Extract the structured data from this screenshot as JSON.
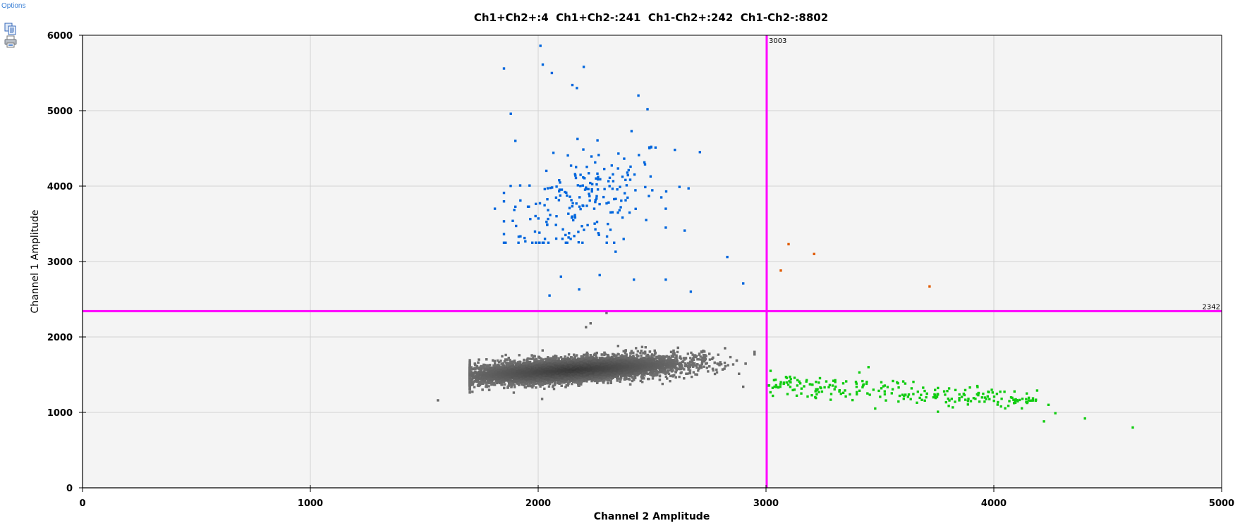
{
  "toolbar": {
    "options_label": "Options",
    "icons": [
      "copy-icon",
      "print-icon"
    ]
  },
  "chart_data": {
    "type": "scatter",
    "title": "Ch1+Ch2+:4  Ch1+Ch2-:241  Ch1-Ch2+:242  Ch1-Ch2-:8802",
    "xlabel": "Channel 2 Amplitude",
    "ylabel": "Channel 1 Amplitude",
    "xlim": [
      0,
      5000
    ],
    "ylim": [
      0,
      6000
    ],
    "xticks": [
      "0",
      "1000",
      "2000",
      "3000",
      "4000",
      "5000"
    ],
    "yticks": [
      "0",
      "1000",
      "2000",
      "3000",
      "4000",
      "5000",
      "6000"
    ],
    "grid": true,
    "thresholds": {
      "channel2": {
        "value": 3003,
        "label": "3003",
        "color": "#ff00ff"
      },
      "channel1": {
        "value": 2342,
        "label": "2342",
        "color": "#ff00ff"
      }
    },
    "background": "#f4f4f4",
    "series": [
      {
        "name": "Ch1+Ch2+",
        "count": 4,
        "color": "#e05a00",
        "points": [
          [
            3099,
            3230
          ],
          [
            3211,
            3100
          ],
          [
            3065,
            2880
          ],
          [
            3718,
            2670
          ]
        ]
      },
      {
        "name": "Ch1+Ch2-",
        "count": 241,
        "color": "#0066dd",
        "points": [
          [
            1850,
            5560
          ],
          [
            2010,
            5860
          ],
          [
            2020,
            5610
          ],
          [
            2200,
            5580
          ],
          [
            2150,
            5340
          ],
          [
            2170,
            5300
          ],
          [
            2060,
            5500
          ],
          [
            1880,
            4960
          ],
          [
            2440,
            5200
          ],
          [
            2480,
            5020
          ],
          [
            1900,
            4600
          ],
          [
            2710,
            4450
          ],
          [
            2600,
            4480
          ],
          [
            1810,
            3700
          ],
          [
            2830,
            3060
          ],
          [
            2900,
            2710
          ],
          [
            2670,
            2600
          ],
          [
            2050,
            2550
          ],
          [
            1990,
            3250
          ],
          [
            2100,
            2800
          ],
          [
            2270,
            2820
          ],
          [
            2420,
            2760
          ],
          [
            2560,
            2760
          ],
          [
            2180,
            2630
          ],
          [
            2660,
            3970
          ],
          [
            2620,
            3990
          ],
          [
            2340,
            3130
          ],
          [
            2560,
            3700
          ],
          [
            2560,
            3450
          ]
        ],
        "center": [
          2200,
          3850
        ]
      },
      {
        "name": "Ch1-Ch2+",
        "count": 242,
        "color": "#11cc11",
        "points": [
          [
            3020,
            1550
          ],
          [
            3030,
            1220
          ],
          [
            3450,
            1600
          ],
          [
            4190,
            1290
          ],
          [
            4240,
            1100
          ],
          [
            4270,
            990
          ],
          [
            4400,
            920
          ],
          [
            4610,
            800
          ],
          [
            4220,
            880
          ]
        ],
        "center": [
          3600,
          1250
        ]
      },
      {
        "name": "Ch1-Ch2-",
        "count": 8802,
        "color": "#666666",
        "points": [
          [
            1560,
            1160
          ],
          [
            2230,
            2180
          ],
          [
            2210,
            2130
          ],
          [
            2300,
            2320
          ],
          [
            2820,
            1850
          ],
          [
            1740,
            1700
          ],
          [
            2900,
            1340
          ]
        ],
        "center": [
          2150,
          1560
        ]
      }
    ]
  }
}
